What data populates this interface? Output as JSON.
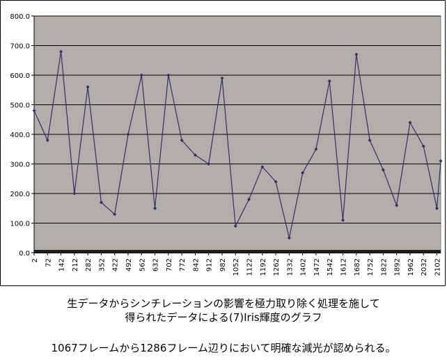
{
  "chart_data": {
    "type": "line",
    "title": "",
    "xlabel": "",
    "ylabel": "",
    "ylim": [
      0,
      800
    ],
    "xlim": [
      2,
      2122
    ],
    "yticks": [
      "0.0",
      "100.0",
      "200.0",
      "300.0",
      "400.0",
      "500.0",
      "600.0",
      "700.0",
      "800.0"
    ],
    "xticks": [
      "2",
      "72",
      "142",
      "212",
      "282",
      "352",
      "422",
      "492",
      "562",
      "632",
      "702",
      "772",
      "842",
      "912",
      "982",
      "1052",
      "1122",
      "1192",
      "1262",
      "1332",
      "1402",
      "1472",
      "1542",
      "1612",
      "1682",
      "1752",
      "1822",
      "1892",
      "1962",
      "2032",
      "2102"
    ],
    "grid": true,
    "legend": "none",
    "plot_bg": "#b4aeaa",
    "line_color": "#2e2f6e",
    "series": [
      {
        "name": "",
        "x": [
          2,
          72,
          142,
          212,
          282,
          352,
          422,
          492,
          562,
          632,
          702,
          772,
          842,
          912,
          982,
          1052,
          1122,
          1192,
          1262,
          1332,
          1402,
          1472,
          1542,
          1612,
          1682,
          1752,
          1822,
          1892,
          1962,
          2032,
          2102,
          2122
        ],
        "values": [
          480,
          380,
          680,
          200,
          560,
          170,
          130,
          400,
          600,
          150,
          600,
          380,
          330,
          300,
          590,
          90,
          180,
          290,
          240,
          50,
          270,
          350,
          580,
          110,
          670,
          380,
          280,
          160,
          440,
          360,
          150,
          310
        ]
      }
    ]
  },
  "captions": {
    "line1": "生データからシンチレーションの影響を極力取り除く処理を施して",
    "line2": "得られたデータによる(7)Iris輝度のグラフ",
    "note": "1067フレームから1286フレーム辺りにおいて明確な減光が認められる。"
  }
}
